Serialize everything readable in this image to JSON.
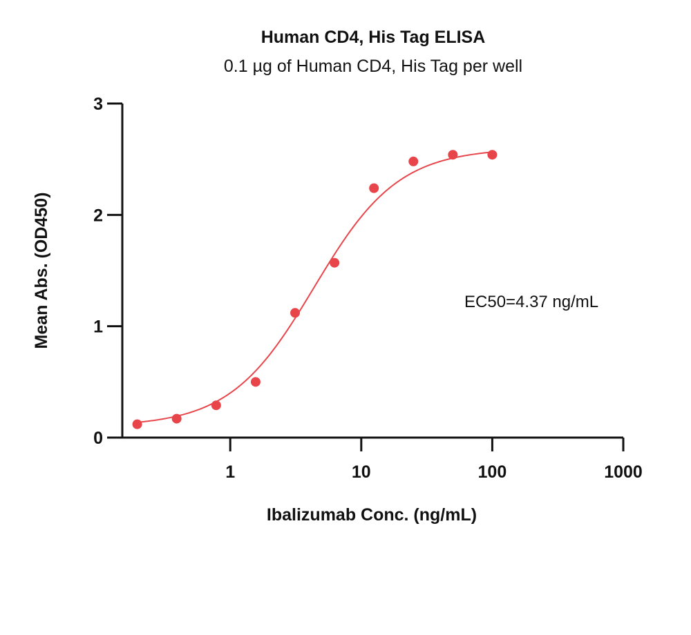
{
  "chart_data": {
    "type": "scatter",
    "title": "Human CD4, His Tag ELISA",
    "subtitle": "0.1 µg of Human CD4, His Tag per well",
    "xlabel": "Ibalizumab Conc. (ng/mL)",
    "ylabel": "Mean Abs. (OD450)",
    "x_scale": "log",
    "xlim": [
      0.15,
      1000
    ],
    "ylim": [
      0,
      3
    ],
    "x_ticks": [
      1,
      10,
      100,
      1000
    ],
    "x_tick_labels": [
      "1",
      "10",
      "100",
      "1000"
    ],
    "y_ticks": [
      0,
      1,
      2,
      3
    ],
    "y_tick_labels": [
      "0",
      "1",
      "2",
      "3"
    ],
    "grid": false,
    "annotation": "EC50=4.37 ng/mL",
    "colors": {
      "series": "#e8454a",
      "axis": "#111111"
    },
    "series": [
      {
        "x": [
          0.195,
          0.39,
          0.781,
          1.5625,
          3.125,
          6.25,
          12.5,
          25,
          50,
          100
        ],
        "values": [
          0.12,
          0.17,
          0.29,
          0.5,
          1.12,
          1.57,
          2.24,
          2.48,
          2.54,
          2.54
        ]
      }
    ],
    "fit": {
      "bottom": 0.1,
      "top": 2.6,
      "ec50": 4.37,
      "hill": 1.35
    }
  }
}
